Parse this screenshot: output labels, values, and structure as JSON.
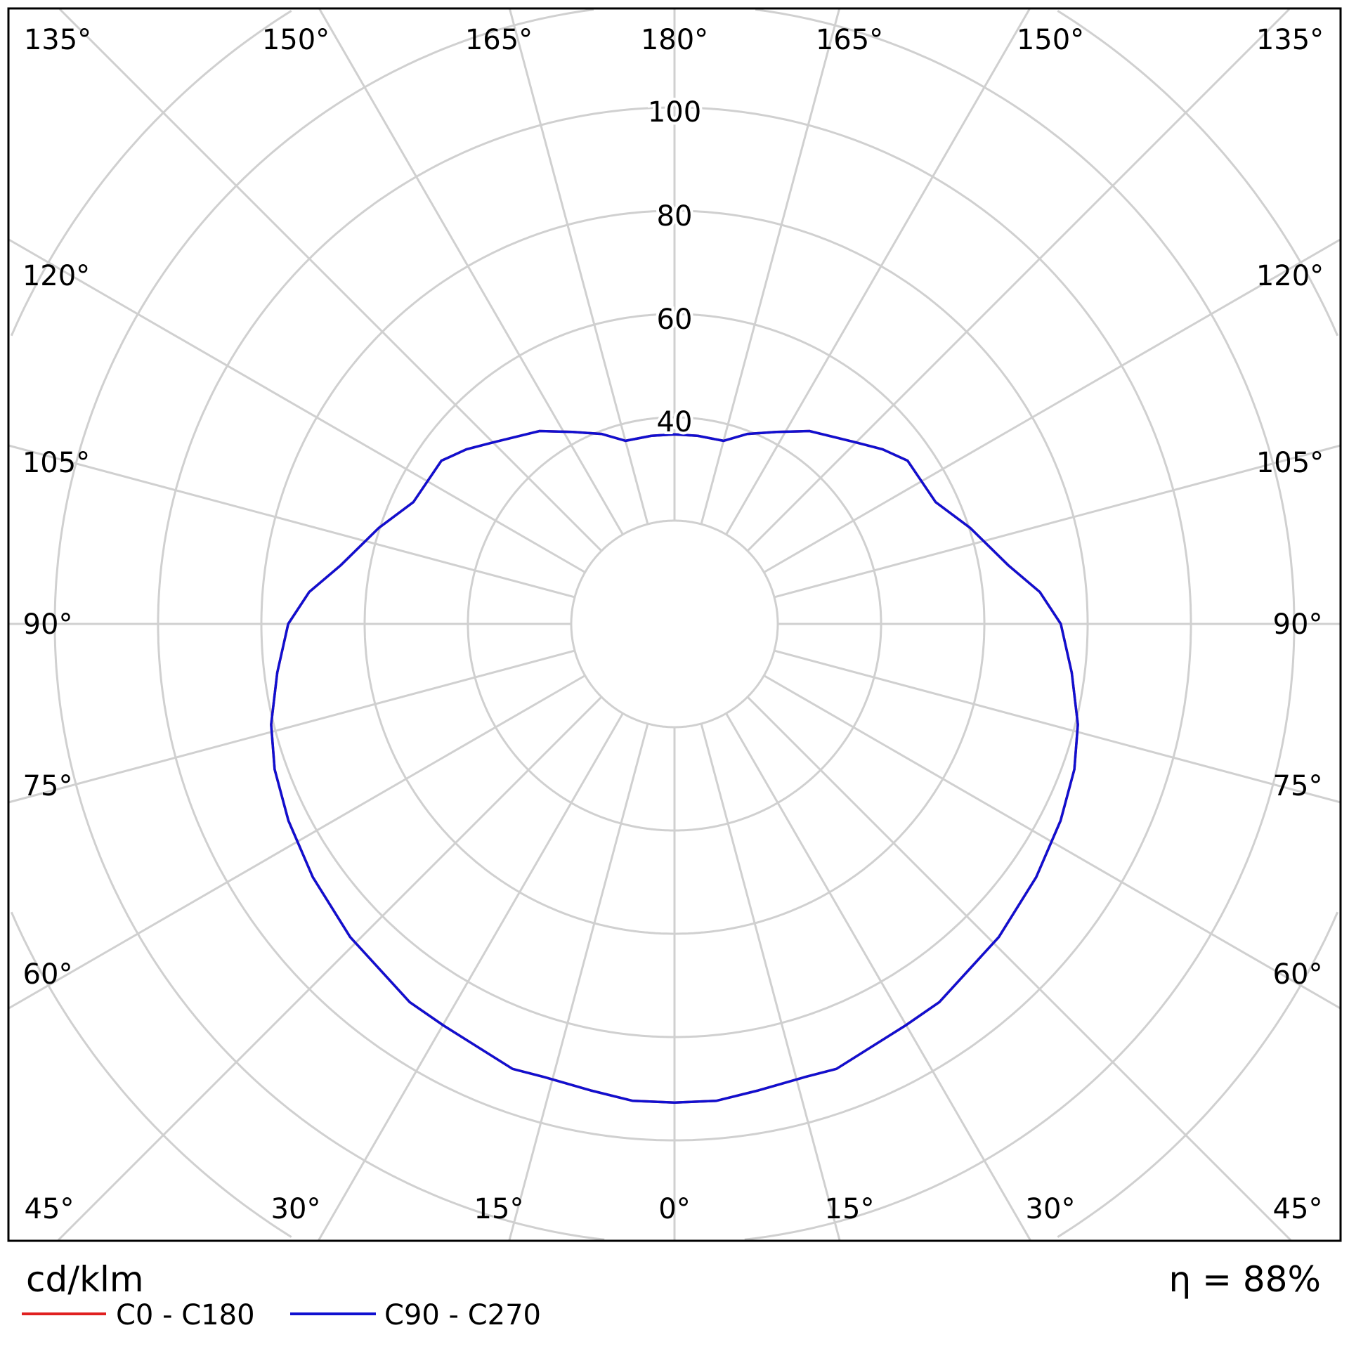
{
  "chart_data": {
    "type": "polar",
    "unit_label": "cd/klm",
    "efficiency_label": "η = 88%",
    "radial_ticks": [
      40,
      60,
      80,
      100
    ],
    "radial_range": [
      20,
      140
    ],
    "radial_step": 20,
    "grid": true,
    "angle_labels": {
      "top": [
        "135°",
        "150°",
        "165°",
        "180°",
        "165°",
        "150°",
        "135°"
      ],
      "left": [
        "120°",
        "105°",
        "90°",
        "75°",
        "60°"
      ],
      "right": [
        "120°",
        "105°",
        "90°",
        "75°",
        "60°"
      ],
      "bottom": [
        "45°",
        "30°",
        "15°",
        "0°",
        "15°",
        "30°",
        "45°"
      ]
    },
    "legend": [
      {
        "name": "C0 - C180",
        "color": "#e02020"
      },
      {
        "name": "C90 - C270",
        "color": "#1010d0"
      }
    ],
    "angles_deg": [
      0,
      5,
      10,
      16,
      20,
      30,
      35,
      46,
      55,
      63,
      70,
      76,
      83,
      90,
      95,
      100,
      108,
      115,
      125,
      130,
      135,
      145,
      152,
      159,
      165,
      173,
      180
    ],
    "series": [
      {
        "name": "C0 - C180",
        "color": "#e02020",
        "values": [
          92.7,
          92.7,
          91.8,
          91.3,
          91.7,
          89.7,
          89.4,
          87.3,
          85.5,
          83.9,
          82.4,
          80.5,
          77.5,
          74.8,
          71,
          65.6,
          60.2,
          55.8,
          55.1,
          52.6,
          49.7,
          45.6,
          42.1,
          39.4,
          36.7,
          36.7,
          36.7
        ]
      },
      {
        "name": "C90 - C270",
        "color": "#1010d0",
        "values": [
          92.7,
          92.7,
          91.8,
          91.3,
          91.7,
          89.7,
          89.4,
          87.3,
          85.5,
          83.9,
          82.4,
          80.5,
          77.5,
          74.8,
          71,
          65.6,
          60.2,
          55.8,
          55.1,
          52.6,
          49.7,
          45.6,
          42.1,
          39.4,
          36.7,
          36.7,
          36.7
        ]
      }
    ]
  }
}
